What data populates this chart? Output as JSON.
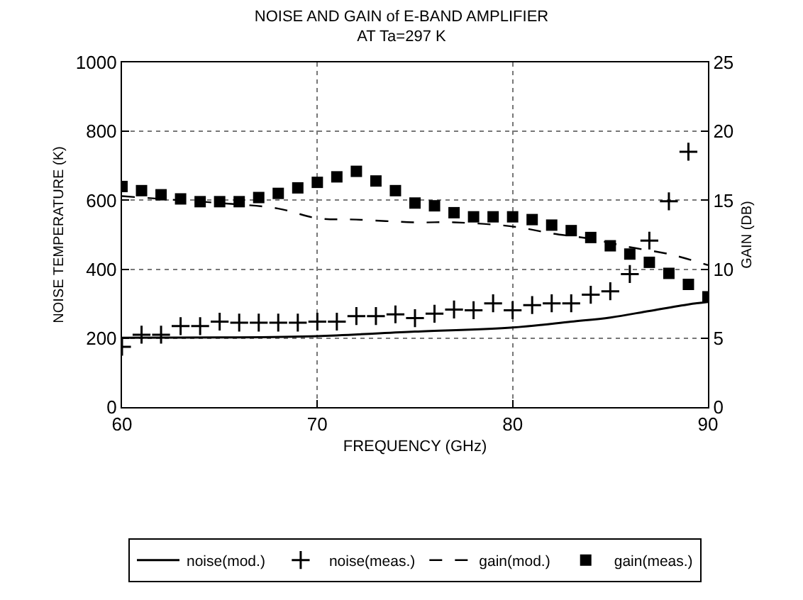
{
  "chart_data": {
    "type": "line",
    "title": "NOISE AND GAIN of E-BAND AMPLIFIER\nAT Ta=297 K",
    "xlabel": "FREQUENCY (GHz)",
    "ylabel": "NOISE TEMPERATURE (K)",
    "y2label": "GAIN (DB)",
    "xlim": [
      60,
      90
    ],
    "xticks": [
      60,
      70,
      80,
      90
    ],
    "ylim": [
      0,
      1000
    ],
    "yticks": [
      0,
      200,
      400,
      600,
      800,
      1000
    ],
    "y2lim": [
      0,
      25
    ],
    "y2ticks": [
      0,
      5,
      10,
      15,
      20,
      25
    ],
    "grid": true,
    "legend": "bottom",
    "series": [
      {
        "name": "noise(mod.)",
        "marker": "none",
        "line_style": "solid",
        "color": "#000000",
        "x": [
          60,
          65,
          70,
          75,
          80,
          83,
          85,
          87,
          89,
          90
        ],
        "values": [
          201,
          202,
          206,
          219,
          231,
          248,
          260,
          279,
          298,
          305
        ]
      },
      {
        "name": "noise(meas.)",
        "type": "scatter",
        "marker": "cross",
        "color": "#000000",
        "x": [
          60,
          61,
          62,
          63,
          64,
          65,
          66,
          67,
          68,
          69,
          70,
          71,
          72,
          73,
          74,
          75,
          76,
          77,
          78,
          79,
          80,
          81,
          82,
          83,
          84,
          85,
          86,
          87,
          88,
          89
        ],
        "values": [
          175,
          210,
          210,
          235,
          235,
          248,
          245,
          245,
          245,
          245,
          248,
          248,
          264,
          264,
          269,
          258,
          271,
          283,
          281,
          301,
          281,
          296,
          301,
          301,
          326,
          336,
          386,
          483,
          597,
          741
        ]
      },
      {
        "name": "gain(mod.)",
        "marker": "none",
        "line_style": "dashed",
        "axis": "y2",
        "color": "#000000",
        "x": [
          60,
          62,
          65,
          68,
          70,
          72,
          75,
          77,
          80,
          82,
          84,
          86,
          88,
          90
        ],
        "values": [
          15.3,
          15.1,
          14.8,
          14.4,
          13.7,
          13.6,
          13.4,
          13.4,
          13.1,
          12.6,
          12.2,
          11.6,
          11.1,
          10.3
        ]
      },
      {
        "name": "gain(meas.)",
        "type": "scatter",
        "marker": "square",
        "axis": "y2",
        "color": "#000000",
        "x": [
          60,
          61,
          62,
          63,
          64,
          65,
          66,
          67,
          68,
          69,
          70,
          71,
          72,
          73,
          74,
          75,
          76,
          77,
          78,
          79,
          80,
          81,
          82,
          83,
          84,
          85,
          86,
          87,
          88,
          89,
          90
        ],
        "values": [
          16.0,
          15.7,
          15.4,
          15.1,
          14.9,
          14.9,
          14.9,
          15.2,
          15.5,
          15.9,
          16.3,
          16.7,
          17.1,
          16.4,
          15.7,
          14.8,
          14.6,
          14.1,
          13.8,
          13.8,
          13.8,
          13.6,
          13.2,
          12.8,
          12.3,
          11.7,
          11.1,
          10.5,
          9.7,
          8.9,
          8.0
        ]
      }
    ]
  }
}
